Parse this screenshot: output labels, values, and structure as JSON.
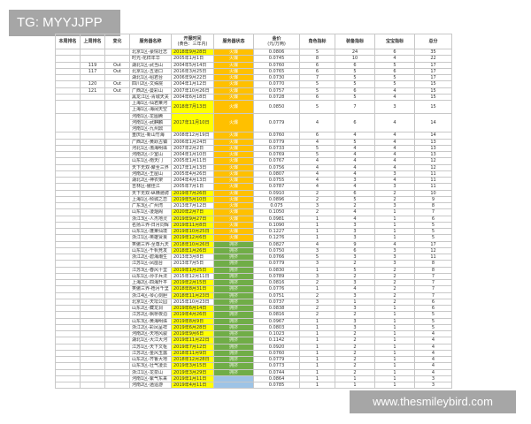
{
  "watermarks": {
    "top_left": "TG: MYYJJPP",
    "bottom_right": "www.thesmileybird.com"
  },
  "colors": {
    "highlight": "#ffff00",
    "status_orange": "#ffc000",
    "status_green": "#70ad47",
    "status_blue": "#9dc3e6"
  },
  "headers": {
    "rank_this": "本周排名",
    "rank_last": "上周排名",
    "change": "变化",
    "name": "服务器名称",
    "open_date": "开服时间",
    "open_date_note": "(黄色：三年内)",
    "status": "服务器状态",
    "price": "金价",
    "price_unit": "(元/万两)",
    "role": "角色指标",
    "equip": "装备指标",
    "pet": "宝宝指标",
    "total": "总分"
  },
  "rows": [
    {
      "last": "",
      "change": "",
      "names": [
        "北京1区-豪情壮志"
      ],
      "date": "2018年9月28日",
      "hl": true,
      "status": "orange",
      "status_text": "火爆",
      "price": "0.0806",
      "role": "5",
      "equip": "24",
      "pet": "6",
      "total": "35"
    },
    {
      "last": "",
      "change": "",
      "names": [
        "时光-花样年华"
      ],
      "date": "2005年1月1日",
      "hl": false,
      "status": "orange",
      "status_text": "火爆",
      "price": "0.0745",
      "role": "8",
      "equip": "10",
      "pet": "4",
      "total": "22"
    },
    {
      "last": "119",
      "change": "Out",
      "names": [
        "湖北1区-武当山"
      ],
      "date": "2004年5月14日",
      "hl": false,
      "status": "orange",
      "status_text": "火爆",
      "price": "0.0760",
      "role": "6",
      "equip": "6",
      "pet": "5",
      "total": "17"
    },
    {
      "last": "117",
      "change": "Out",
      "names": [
        "北京1区-五道口"
      ],
      "date": "2016年3月25日",
      "hl": false,
      "status": "orange",
      "status_text": "火爆",
      "price": "0.0765",
      "role": "6",
      "equip": "5",
      "pet": "6",
      "total": "17"
    },
    {
      "last": "",
      "change": "",
      "names": [
        "湖北1区-绍君台"
      ],
      "date": "2006年9月22日",
      "hl": false,
      "status": "orange",
      "status_text": "火爆",
      "price": "0.0730",
      "role": "7",
      "equip": "5",
      "pet": "5",
      "total": "17"
    },
    {
      "last": "120",
      "change": "Out",
      "names": [
        "四川2区-文殊院"
      ],
      "date": "2004年1月12日",
      "hl": false,
      "status": "orange",
      "status_text": "火爆",
      "price": "0.0770",
      "role": "5",
      "equip": "5",
      "pet": "5",
      "total": "15"
    },
    {
      "last": "121",
      "change": "Out",
      "names": [
        "广西2区-曼彩山"
      ],
      "date": "2007年10月26日",
      "hl": false,
      "status": "orange",
      "status_text": "火爆",
      "price": "0.0757",
      "role": "5",
      "equip": "6",
      "pet": "4",
      "total": "15"
    },
    {
      "last": "",
      "change": "",
      "names": [
        "黑龙江区-青城天关"
      ],
      "date": "2004年6月18日",
      "hl": false,
      "status": "orange",
      "status_text": "火爆",
      "price": "0.0728",
      "role": "6",
      "equip": "5",
      "pet": "4",
      "total": "15"
    },
    {
      "last": "",
      "change": "",
      "names": [
        "上海1区-仙君莱河",
        "上海1区-海阔天空"
      ],
      "date": "2018年7月13日",
      "hl": true,
      "status": "orange",
      "status_text": "火爆",
      "price": "0.0850",
      "role": "5",
      "equip": "7",
      "pet": "3",
      "total": "15"
    },
    {
      "last": "",
      "change": "",
      "names": [
        "河南1区-龙图腾",
        "河南1区-武麒麟",
        "河南1区-九州鼎"
      ],
      "date": "2017年11月10日",
      "hl": true,
      "status": "orange",
      "status_text": "火爆",
      "price": "0.0779",
      "role": "4",
      "equip": "6",
      "pet": "4",
      "total": "14"
    },
    {
      "last": "",
      "change": "",
      "names": [
        "重庆区-新山竹海"
      ],
      "date": "2008年12月19日",
      "hl": false,
      "status": "orange",
      "status_text": "火爆",
      "price": "0.0760",
      "role": "6",
      "equip": "4",
      "pet": "4",
      "total": "14"
    },
    {
      "last": "",
      "change": "",
      "names": [
        "广西2区-黄跃古镇"
      ],
      "date": "2006年1月24日",
      "hl": false,
      "status": "orange",
      "status_text": "火爆",
      "price": "0.0779",
      "role": "4",
      "equip": "5",
      "pet": "4",
      "total": "13"
    },
    {
      "last": "",
      "change": "",
      "names": [
        "河北1区-渤海明珠"
      ],
      "date": "2007年2月2日",
      "hl": false,
      "status": "orange",
      "status_text": "火爆",
      "price": "0.0733",
      "role": "5",
      "equip": "4",
      "pet": "4",
      "total": "13"
    },
    {
      "last": "",
      "change": "",
      "names": [
        "河南2区-少室山"
      ],
      "date": "2004年1月10日",
      "hl": false,
      "status": "orange",
      "status_text": "火爆",
      "price": "0.0769",
      "role": "5",
      "equip": "4",
      "pet": "4",
      "total": "13"
    },
    {
      "last": "",
      "change": "",
      "names": [
        "山东1区-南天门"
      ],
      "date": "2005年1月11日",
      "hl": false,
      "status": "orange",
      "status_text": "火爆",
      "price": "0.0767",
      "role": "4",
      "equip": "4",
      "pet": "4",
      "total": "12"
    },
    {
      "last": "",
      "change": "",
      "names": [
        "天下无双-聚圣三界"
      ],
      "date": "2017年1月13日",
      "hl": false,
      "status": "orange",
      "status_text": "火爆",
      "price": "0.0756",
      "role": "4",
      "equip": "4",
      "pet": "4",
      "total": "12"
    },
    {
      "last": "",
      "change": "",
      "names": [
        "河南2区-王屋山"
      ],
      "date": "2005年4月26日",
      "hl": false,
      "status": "orange",
      "status_text": "火爆",
      "price": "0.0807",
      "role": "4",
      "equip": "4",
      "pet": "3",
      "total": "11"
    },
    {
      "last": "",
      "change": "",
      "names": [
        "湖北2区-神农架"
      ],
      "date": "2004年4月13日",
      "hl": false,
      "status": "orange",
      "status_text": "火爆",
      "price": "0.0755",
      "role": "4",
      "equip": "3",
      "pet": "4",
      "total": "11"
    },
    {
      "last": "",
      "change": "",
      "names": [
        "吉林区-傲佳江"
      ],
      "date": "2005年7月1日",
      "hl": false,
      "status": "orange",
      "status_text": "火爆",
      "price": "0.0787",
      "role": "4",
      "equip": "4",
      "pet": "3",
      "total": "11"
    },
    {
      "last": "",
      "change": "",
      "names": [
        "天下无双-纵横驰骋"
      ],
      "date": "2019年7月26日",
      "hl": true,
      "status": "orange",
      "status_text": "火爆",
      "price": "0.0910",
      "role": "2",
      "equip": "6",
      "pet": "2",
      "total": "10"
    },
    {
      "last": "",
      "change": "",
      "names": [
        "上海1区-倾城之恋"
      ],
      "date": "2019年5月10日",
      "hl": true,
      "status": "orange",
      "status_text": "火爆",
      "price": "0.0896",
      "role": "2",
      "equip": "5",
      "pet": "2",
      "total": "9"
    },
    {
      "last": "",
      "change": "",
      "names": [
        "广东3区-广州湾"
      ],
      "date": "2013年7月12日",
      "hl": false,
      "status": "orange",
      "status_text": "火爆",
      "price": "0.075",
      "role": "3",
      "equip": "2",
      "pet": "3",
      "total": "8"
    },
    {
      "last": "",
      "change": "",
      "names": [
        "山东1区-凌烟阁"
      ],
      "date": "2020年2月7日",
      "hl": true,
      "status": "orange",
      "status_text": "火爆",
      "price": "0.1050",
      "role": "2",
      "equip": "4",
      "pet": "1",
      "total": "7"
    },
    {
      "last": "",
      "change": "",
      "names": [
        "浙江3区-人杰地灵"
      ],
      "date": "2019年9月27日",
      "hl": true,
      "status": "orange",
      "status_text": "火爆",
      "price": "0.0981",
      "role": "1",
      "equip": "4",
      "pet": "1",
      "total": "6"
    },
    {
      "last": "",
      "change": "",
      "names": [
        "名扬三界-日月同辉"
      ],
      "date": "2019年11月8日",
      "hl": true,
      "status": "orange",
      "status_text": "火爆",
      "price": "0.1090",
      "role": "1",
      "equip": "3",
      "pet": "1",
      "total": "5"
    },
    {
      "last": "",
      "change": "",
      "names": [
        "山东1区-蓬莱仙境"
      ],
      "date": "2019年10月25日",
      "hl": true,
      "status": "orange",
      "status_text": "火爆",
      "price": "0.1227",
      "role": "1",
      "equip": "3",
      "pet": "1",
      "total": "5"
    },
    {
      "last": "",
      "change": "",
      "names": [
        "浙江1区-英雄贤良"
      ],
      "date": "2019年12月6日",
      "hl": true,
      "status": "orange",
      "status_text": "火爆",
      "price": "0.1276",
      "role": "1",
      "equip": "3",
      "pet": "1",
      "total": "5"
    },
    {
      "last": "",
      "change": "",
      "names": [
        "笑傲三界-至尊九天"
      ],
      "date": "2018年10月26日",
      "hl": true,
      "status": "green",
      "status_text": "拥挤",
      "price": "0.0827",
      "role": "4",
      "equip": "9",
      "pet": "4",
      "total": "17"
    },
    {
      "last": "",
      "change": "",
      "names": [
        "山东1区-千帆竞发"
      ],
      "date": "2018年1月26日",
      "hl": true,
      "status": "green",
      "status_text": "拥挤",
      "price": "0.0750",
      "role": "3",
      "equip": "6",
      "pet": "3",
      "total": "12"
    },
    {
      "last": "",
      "change": "",
      "names": [
        "浙江2区-碧海潮生"
      ],
      "date": "2013年3月8日",
      "hl": false,
      "status": "green",
      "status_text": "拥挤",
      "price": "0.0766",
      "role": "5",
      "equip": "3",
      "pet": "3",
      "total": "11"
    },
    {
      "last": "",
      "change": "",
      "names": [
        "江苏1区-凤凰台"
      ],
      "date": "2013年7月5日",
      "hl": false,
      "status": "green",
      "status_text": "拥挤",
      "price": "0.0779",
      "role": "3",
      "equip": "2",
      "pet": "3",
      "total": "8"
    },
    {
      "last": "",
      "change": "",
      "names": [
        "江苏3区-春风十里"
      ],
      "date": "2019年1月25日",
      "hl": true,
      "status": "green",
      "status_text": "拥挤",
      "price": "0.0830",
      "role": "1",
      "equip": "5",
      "pet": "2",
      "total": "8"
    },
    {
      "last": "",
      "change": "",
      "names": [
        "山东1区-孙子兵法"
      ],
      "date": "2015年12月11日",
      "hl": false,
      "status": "green",
      "status_text": "拥挤",
      "price": "0.0789",
      "role": "3",
      "equip": "2",
      "pet": "2",
      "total": "7"
    },
    {
      "last": "",
      "change": "",
      "names": [
        "上海2区-四海升平"
      ],
      "date": "2019年2月15日",
      "hl": true,
      "status": "green",
      "status_text": "拥挤",
      "price": "0.0816",
      "role": "2",
      "equip": "3",
      "pet": "2",
      "total": "7"
    },
    {
      "last": "",
      "change": "",
      "names": [
        "笑傲三界-梧月千里"
      ],
      "date": "2018年8月31日",
      "hl": true,
      "status": "green",
      "status_text": "拥挤",
      "price": "0.0776",
      "role": "1",
      "equip": "4",
      "pet": "2",
      "total": "7"
    },
    {
      "last": "",
      "change": "",
      "names": [
        "浙江4区-琴心剑胆"
      ],
      "date": "2018年11月23日",
      "hl": true,
      "status": "green",
      "status_text": "拥挤",
      "price": "0.0751",
      "role": "2",
      "equip": "3",
      "pet": "2",
      "total": "7"
    },
    {
      "last": "",
      "change": "",
      "names": [
        "北京1区-天坛公园"
      ],
      "date": "2015年10月23日",
      "hl": false,
      "status": "green",
      "status_text": "拥挤",
      "price": "0.0737",
      "role": "3",
      "equip": "1",
      "pet": "2",
      "total": "6"
    },
    {
      "last": "",
      "change": "",
      "names": [
        "山东2区-藏龙洞"
      ],
      "date": "2019年6月14日",
      "hl": true,
      "status": "green",
      "status_text": "拥挤",
      "price": "0.0838",
      "role": "2",
      "equip": "3",
      "pet": "1",
      "total": "6"
    },
    {
      "last": "",
      "change": "",
      "names": [
        "江苏2区-枫桥夜泊"
      ],
      "date": "2019年4月26日",
      "hl": true,
      "status": "green",
      "status_text": "拥挤",
      "price": "0.0816",
      "role": "2",
      "equip": "2",
      "pet": "1",
      "total": "5"
    },
    {
      "last": "",
      "change": "",
      "names": [
        "山东3区-黄海明珠"
      ],
      "date": "2019年8月9日",
      "hl": true,
      "status": "green",
      "status_text": "拥挤",
      "price": "0.0967",
      "role": "1",
      "equip": "3",
      "pet": "1",
      "total": "5"
    },
    {
      "last": "",
      "change": "",
      "names": [
        "浙江2区-彩凤呈祥"
      ],
      "date": "2019年6月28日",
      "hl": true,
      "status": "green",
      "status_text": "拥挤",
      "price": "0.0803",
      "role": "1",
      "equip": "3",
      "pet": "1",
      "total": "5"
    },
    {
      "last": "",
      "change": "",
      "names": [
        "河南2区-天地风骏"
      ],
      "date": "2019年9月6日",
      "hl": true,
      "status": "green",
      "status_text": "拥挤",
      "price": "0.1023",
      "role": "1",
      "equip": "2",
      "pet": "1",
      "total": "4"
    },
    {
      "last": "",
      "change": "",
      "names": [
        "湖北1区-大江大河"
      ],
      "date": "2019年11月22日",
      "hl": true,
      "status": "green",
      "status_text": "拥挤",
      "price": "0.1142",
      "role": "1",
      "equip": "2",
      "pet": "1",
      "total": "4"
    },
    {
      "last": "",
      "change": "",
      "names": [
        "江苏1区-天下文枢"
      ],
      "date": "2019年7月12日",
      "hl": true,
      "status": "green",
      "status_text": "拥挤",
      "price": "0.0920",
      "role": "1",
      "equip": "2",
      "pet": "1",
      "total": "4"
    },
    {
      "last": "",
      "change": "",
      "names": [
        "江苏2区-金风玉露"
      ],
      "date": "2018年11月9日",
      "hl": true,
      "status": "green",
      "status_text": "拥挤",
      "price": "0.0760",
      "role": "1",
      "equip": "2",
      "pet": "1",
      "total": "4"
    },
    {
      "last": "",
      "change": "",
      "names": [
        "山东2区-齐鲁大地"
      ],
      "date": "2018年12月28日",
      "hl": true,
      "status": "green",
      "status_text": "拥挤",
      "price": "0.0779",
      "role": "1",
      "equip": "2",
      "pet": "1",
      "total": "4"
    },
    {
      "last": "",
      "change": "",
      "names": [
        "山东3区-壮气凌云"
      ],
      "date": "2019年3月15日",
      "hl": true,
      "status": "green",
      "status_text": "拥挤",
      "price": "0.0773",
      "role": "1",
      "equip": "2",
      "pet": "1",
      "total": "4"
    },
    {
      "last": "",
      "change": "",
      "names": [
        "浙江1区-龙泉山"
      ],
      "date": "2019年3月29日",
      "hl": true,
      "status": "green",
      "status_text": "拥挤",
      "price": "0.0744",
      "role": "1",
      "equip": "2",
      "pet": "1",
      "total": "4"
    },
    {
      "last": "",
      "change": "",
      "names": [
        "河南1区-紫气东来"
      ],
      "date": "2019年1月11日",
      "hl": true,
      "status": "blue",
      "status_text": "",
      "price": "0.0864",
      "role": "1",
      "equip": "1",
      "pet": "1",
      "total": "3"
    },
    {
      "last": "",
      "change": "",
      "names": [
        "河南2区-逍遥游"
      ],
      "date": "2019年4月11日",
      "hl": true,
      "status": "blue",
      "status_text": "",
      "price": "0.0785",
      "role": "1",
      "equip": "1",
      "pet": "1",
      "total": "3"
    }
  ]
}
